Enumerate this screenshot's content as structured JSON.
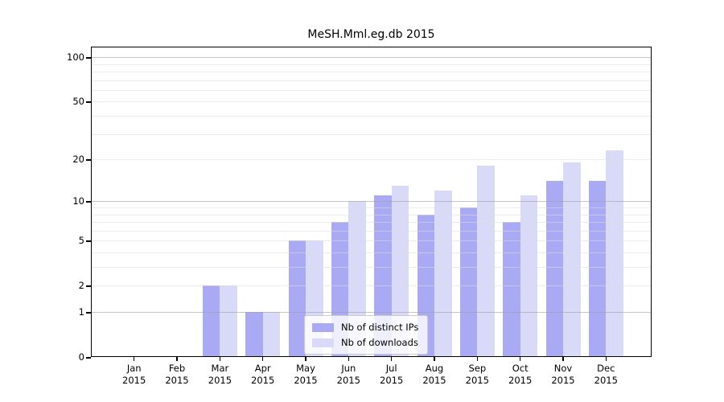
{
  "title": "MeSH.Mml.eg.db 2015",
  "chart_data": {
    "type": "bar",
    "title": "MeSH.Mml.eg.db 2015",
    "categories": [
      "Jan 2015",
      "Feb 2015",
      "Mar 2015",
      "Apr 2015",
      "May 2015",
      "Jun 2015",
      "Jul 2015",
      "Aug 2015",
      "Sep 2015",
      "Oct 2015",
      "Nov 2015",
      "Dec 2015"
    ],
    "series": [
      {
        "name": "Nb of distinct IPs",
        "color": "#a9a9f4",
        "values": [
          0,
          0,
          2,
          1,
          5,
          7,
          11,
          8,
          9,
          7,
          14,
          14
        ]
      },
      {
        "name": "Nb of downloads",
        "color": "#d9d9f8",
        "values": [
          0,
          0,
          2,
          1,
          5,
          10,
          13,
          12,
          18,
          11,
          19,
          23
        ]
      }
    ],
    "xlabel": "",
    "ylabel": "",
    "y_axis": {
      "scale": "log10(1+x)",
      "tick_values": [
        0,
        1,
        2,
        5,
        10,
        20,
        50,
        100
      ],
      "tick_labels": [
        "0",
        "1",
        "2",
        "5",
        "10",
        "20",
        "50",
        "100"
      ],
      "minor_gridlines": [
        2,
        3,
        4,
        5,
        6,
        7,
        8,
        9,
        20,
        30,
        40,
        50,
        60,
        70,
        80,
        90
      ],
      "major_gridlines": [
        1,
        10,
        100
      ],
      "ylim": [
        0,
        118
      ]
    },
    "grid": "on",
    "legend_position": "inside-bottom-center"
  },
  "colors": {
    "bar_distinct_ips": "#a9a9f4",
    "bar_downloads": "#d9d9f8",
    "grid_minor_on_white": "#ececec",
    "grid_major_on_white": "#c6c6c6",
    "axis": "#000000",
    "legend_border": "#cccccc"
  }
}
